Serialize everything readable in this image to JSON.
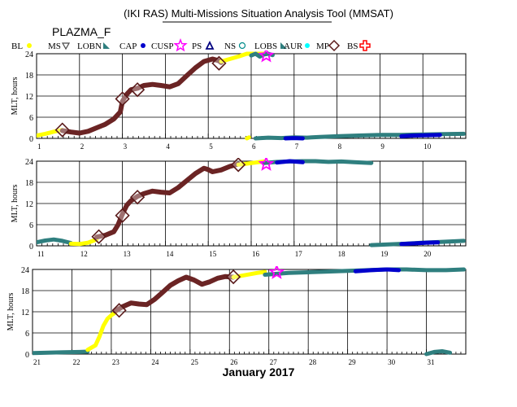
{
  "header": {
    "title": "(IKI RAS) Multi-Missions Situation Analysis Tool (MMSAT)",
    "mission": "PLAZMA_F"
  },
  "legend": {
    "items": [
      {
        "label": "BL",
        "marker": "dot",
        "color": "#ffff00"
      },
      {
        "label": "MS",
        "marker": "triangle-down",
        "color": "#4b4b4b"
      },
      {
        "label": "LOBN",
        "marker": "wedge",
        "color": "#2f7f7f"
      },
      {
        "label": "CAP",
        "marker": "dot",
        "color": "#0000cc"
      },
      {
        "label": "CUSP",
        "marker": "star",
        "color": "#ff00ff"
      },
      {
        "label": "PS",
        "marker": "triangle-up",
        "color": "#000080"
      },
      {
        "label": "NS",
        "marker": "circle",
        "color": "#008b8b"
      },
      {
        "label": "LOBS",
        "marker": "wedge",
        "color": "#2f7f7f"
      },
      {
        "label": "AUR",
        "marker": "dot",
        "color": "#00ffff"
      },
      {
        "label": "MP",
        "marker": "diamond",
        "color": "#5a1a1a"
      },
      {
        "label": "BS",
        "marker": "cross",
        "color": "#ff0000"
      }
    ]
  },
  "chart_data": [
    {
      "type": "line",
      "ylabel": "MLT, hours",
      "xlim": [
        1,
        11
      ],
      "ylim": [
        0,
        24
      ],
      "x_ticks": [
        "1",
        "2",
        "3",
        "4",
        "5",
        "6",
        "7",
        "8",
        "9",
        "10"
      ],
      "y_ticks": [
        "0",
        "6",
        "12",
        "18",
        "24"
      ],
      "grid": true,
      "series": [
        {
          "region": "BL",
          "color": "#ffff00",
          "x": [
            1.0,
            1.2,
            1.4,
            1.6
          ],
          "y": [
            0.8,
            1.3,
            1.9,
            2.4
          ]
        },
        {
          "region": "MP",
          "color": "#6b2424",
          "x": [
            1.6,
            1.8,
            2.0,
            2.2,
            2.4,
            2.6,
            2.8,
            2.95,
            3.0,
            3.1,
            3.2,
            3.35,
            3.5,
            3.7,
            3.9,
            4.1,
            4.3,
            4.5,
            4.7,
            4.9,
            5.1,
            5.25,
            5.3
          ],
          "y": [
            2.2,
            1.8,
            1.5,
            2.0,
            3.0,
            4.0,
            5.5,
            7.5,
            10.5,
            12.5,
            13.8,
            14.2,
            15.0,
            15.3,
            15.0,
            14.6,
            15.5,
            17.8,
            20.0,
            21.8,
            22.5,
            22.0,
            21.5
          ]
        },
        {
          "region": "BL",
          "color": "#ffff00",
          "x": [
            5.3,
            5.5,
            5.7,
            5.9,
            6.1,
            6.3
          ],
          "y": [
            21.8,
            22.5,
            23.2,
            24.0,
            24.0,
            24.0
          ]
        },
        {
          "region": "LOBN",
          "color": "#2f7f7f",
          "x": [
            6.0,
            6.1,
            6.2,
            6.3,
            6.4,
            6.5
          ],
          "y": [
            23.5,
            24.0,
            23.2,
            23.8,
            24.0,
            23.6
          ]
        },
        {
          "region": "BL",
          "color": "#ffff00",
          "x": [
            5.9,
            5.95
          ],
          "y": [
            0.0,
            0.3
          ]
        },
        {
          "region": "LOBN",
          "color": "#2f7f7f",
          "x": [
            6.1,
            6.4,
            6.7,
            7.0,
            7.3,
            7.6,
            8.0,
            8.5,
            9.0,
            9.5,
            10.0,
            10.5,
            10.95
          ],
          "y": [
            0.0,
            0.2,
            0.1,
            0.3,
            0.2,
            0.4,
            0.6,
            0.8,
            1.0,
            1.0,
            1.1,
            1.2,
            1.3
          ]
        },
        {
          "region": "CAP",
          "color": "#0000cc",
          "x": [
            6.8,
            7.0,
            7.2
          ],
          "y": [
            0.0,
            0.1,
            0.0
          ]
        },
        {
          "region": "CAP",
          "color": "#0000cc",
          "x": [
            9.5,
            9.8,
            10.1,
            10.4
          ],
          "y": [
            0.6,
            0.8,
            0.9,
            1.0
          ]
        }
      ],
      "markers": [
        {
          "type": "diamond",
          "x": 1.6,
          "y": 2.4
        },
        {
          "type": "diamond",
          "x": 3.0,
          "y": 11.2
        },
        {
          "type": "diamond",
          "x": 3.35,
          "y": 13.8
        },
        {
          "type": "diamond",
          "x": 5.25,
          "y": 21.3
        },
        {
          "type": "star",
          "x": 6.35,
          "y": 23.5
        }
      ]
    },
    {
      "type": "line",
      "ylabel": "MLT, hours",
      "xlim": [
        11,
        21
      ],
      "ylim": [
        0,
        24
      ],
      "x_ticks": [
        "11",
        "12",
        "13",
        "14",
        "15",
        "16",
        "17",
        "18",
        "19",
        "20"
      ],
      "y_ticks": [
        "0",
        "6",
        "12",
        "18",
        "24"
      ],
      "grid": true,
      "series": [
        {
          "region": "LOBN",
          "color": "#2f7f7f",
          "x": [
            11.0,
            11.2,
            11.4,
            11.6,
            11.8
          ],
          "y": [
            1.0,
            1.5,
            1.8,
            1.4,
            0.8
          ]
        },
        {
          "region": "BL",
          "color": "#ffff00",
          "x": [
            11.8,
            12.0,
            12.2,
            12.4
          ],
          "y": [
            0.6,
            0.5,
            0.9,
            1.8
          ]
        },
        {
          "region": "MP",
          "color": "#6b2424",
          "x": [
            12.4,
            12.6,
            12.8,
            12.9,
            13.0,
            13.1,
            13.2,
            13.35,
            13.5,
            13.7,
            13.9,
            14.1,
            14.3,
            14.5,
            14.7,
            14.9,
            15.0,
            15.1,
            15.3,
            15.5,
            15.7
          ],
          "y": [
            2.5,
            3.0,
            4.0,
            6.0,
            9.0,
            11.5,
            12.8,
            14.0,
            14.8,
            15.5,
            15.2,
            15.0,
            16.5,
            18.5,
            20.5,
            22.0,
            21.6,
            21.0,
            21.5,
            22.5,
            23.2
          ]
        },
        {
          "region": "BL",
          "color": "#ffff00",
          "x": [
            15.7,
            15.9,
            16.1,
            16.3
          ],
          "y": [
            23.0,
            23.3,
            23.6,
            23.9
          ]
        },
        {
          "region": "LOBN",
          "color": "#2f7f7f",
          "x": [
            16.3,
            16.6,
            16.9,
            17.2,
            17.5,
            17.8,
            18.1,
            18.4,
            18.8
          ],
          "y": [
            23.5,
            23.8,
            23.9,
            24.0,
            24.0,
            23.8,
            23.9,
            23.7,
            23.5
          ]
        },
        {
          "region": "CAP",
          "color": "#0000cc",
          "x": [
            16.6,
            16.9,
            17.2
          ],
          "y": [
            23.6,
            24.0,
            23.7
          ]
        },
        {
          "region": "LOBN",
          "color": "#2f7f7f",
          "x": [
            18.8,
            19.2,
            19.6,
            20.0,
            20.4,
            20.95
          ],
          "y": [
            0.2,
            0.4,
            0.6,
            0.9,
            1.1,
            1.4
          ]
        },
        {
          "region": "CAP",
          "color": "#0000cc",
          "x": [
            19.5,
            19.8,
            20.1,
            20.35
          ],
          "y": [
            0.5,
            0.7,
            0.9,
            1.0
          ]
        }
      ],
      "markers": [
        {
          "type": "diamond",
          "x": 12.45,
          "y": 2.6
        },
        {
          "type": "diamond",
          "x": 13.0,
          "y": 8.6
        },
        {
          "type": "diamond",
          "x": 13.35,
          "y": 13.8
        },
        {
          "type": "diamond",
          "x": 15.7,
          "y": 23.0
        },
        {
          "type": "star",
          "x": 16.35,
          "y": 23.2
        }
      ]
    },
    {
      "type": "line",
      "ylabel": "MLT, hours",
      "xlim": [
        21,
        32
      ],
      "ylim": [
        0,
        24
      ],
      "x_ticks": [
        "21",
        "22",
        "23",
        "24",
        "25",
        "26",
        "27",
        "28",
        "29",
        "30",
        "31"
      ],
      "y_ticks": [
        "0",
        "6",
        "12",
        "18",
        "24"
      ],
      "grid": true,
      "xlabel": "January 2017",
      "series": [
        {
          "region": "LOBN",
          "color": "#2f7f7f",
          "x": [
            21.0,
            21.4,
            21.8,
            22.2,
            22.4
          ],
          "y": [
            0.3,
            0.4,
            0.5,
            0.6,
            0.7
          ]
        },
        {
          "region": "BL",
          "color": "#ffff00",
          "x": [
            22.4,
            22.6,
            22.7,
            22.8,
            22.9,
            23.0,
            23.1
          ],
          "y": [
            1.2,
            2.5,
            5.0,
            8.0,
            10.0,
            11.0,
            11.8
          ]
        },
        {
          "region": "MP",
          "color": "#6b2424",
          "x": [
            23.1,
            23.3,
            23.5,
            23.7,
            23.9,
            24.1,
            24.3,
            24.5,
            24.7,
            24.9,
            25.1,
            25.3,
            25.5,
            25.7,
            25.9,
            26.1
          ],
          "y": [
            12.2,
            13.5,
            14.5,
            14.2,
            14.0,
            15.5,
            17.5,
            19.5,
            20.8,
            21.8,
            21.0,
            19.8,
            20.5,
            21.5,
            22.0,
            21.8
          ]
        },
        {
          "region": "BL",
          "color": "#ffff00",
          "x": [
            26.1,
            26.3,
            26.5,
            26.7,
            26.9
          ],
          "y": [
            21.8,
            22.2,
            22.6,
            23.0,
            23.3
          ]
        },
        {
          "region": "LOBN",
          "color": "#2f7f7f",
          "x": [
            26.9,
            27.5,
            28.0,
            28.5,
            29.0,
            29.5,
            30.0,
            30.5,
            31.0,
            31.5,
            31.95
          ],
          "y": [
            22.5,
            23.0,
            23.2,
            23.4,
            23.6,
            23.8,
            24.0,
            24.0,
            23.8,
            23.8,
            24.0
          ]
        },
        {
          "region": "CAP",
          "color": "#0000cc",
          "x": [
            29.2,
            29.6,
            30.0,
            30.3
          ],
          "y": [
            23.5,
            23.8,
            24.0,
            23.8
          ]
        },
        {
          "region": "LOBN",
          "color": "#2f7f7f",
          "x": [
            31.0,
            31.2,
            31.4,
            31.6
          ],
          "y": [
            0.0,
            0.6,
            0.8,
            0.4
          ]
        }
      ],
      "markers": [
        {
          "type": "diamond",
          "x": 23.2,
          "y": 12.4
        },
        {
          "type": "diamond",
          "x": 26.1,
          "y": 21.9
        },
        {
          "type": "star",
          "x": 27.2,
          "y": 23.2
        }
      ]
    }
  ]
}
